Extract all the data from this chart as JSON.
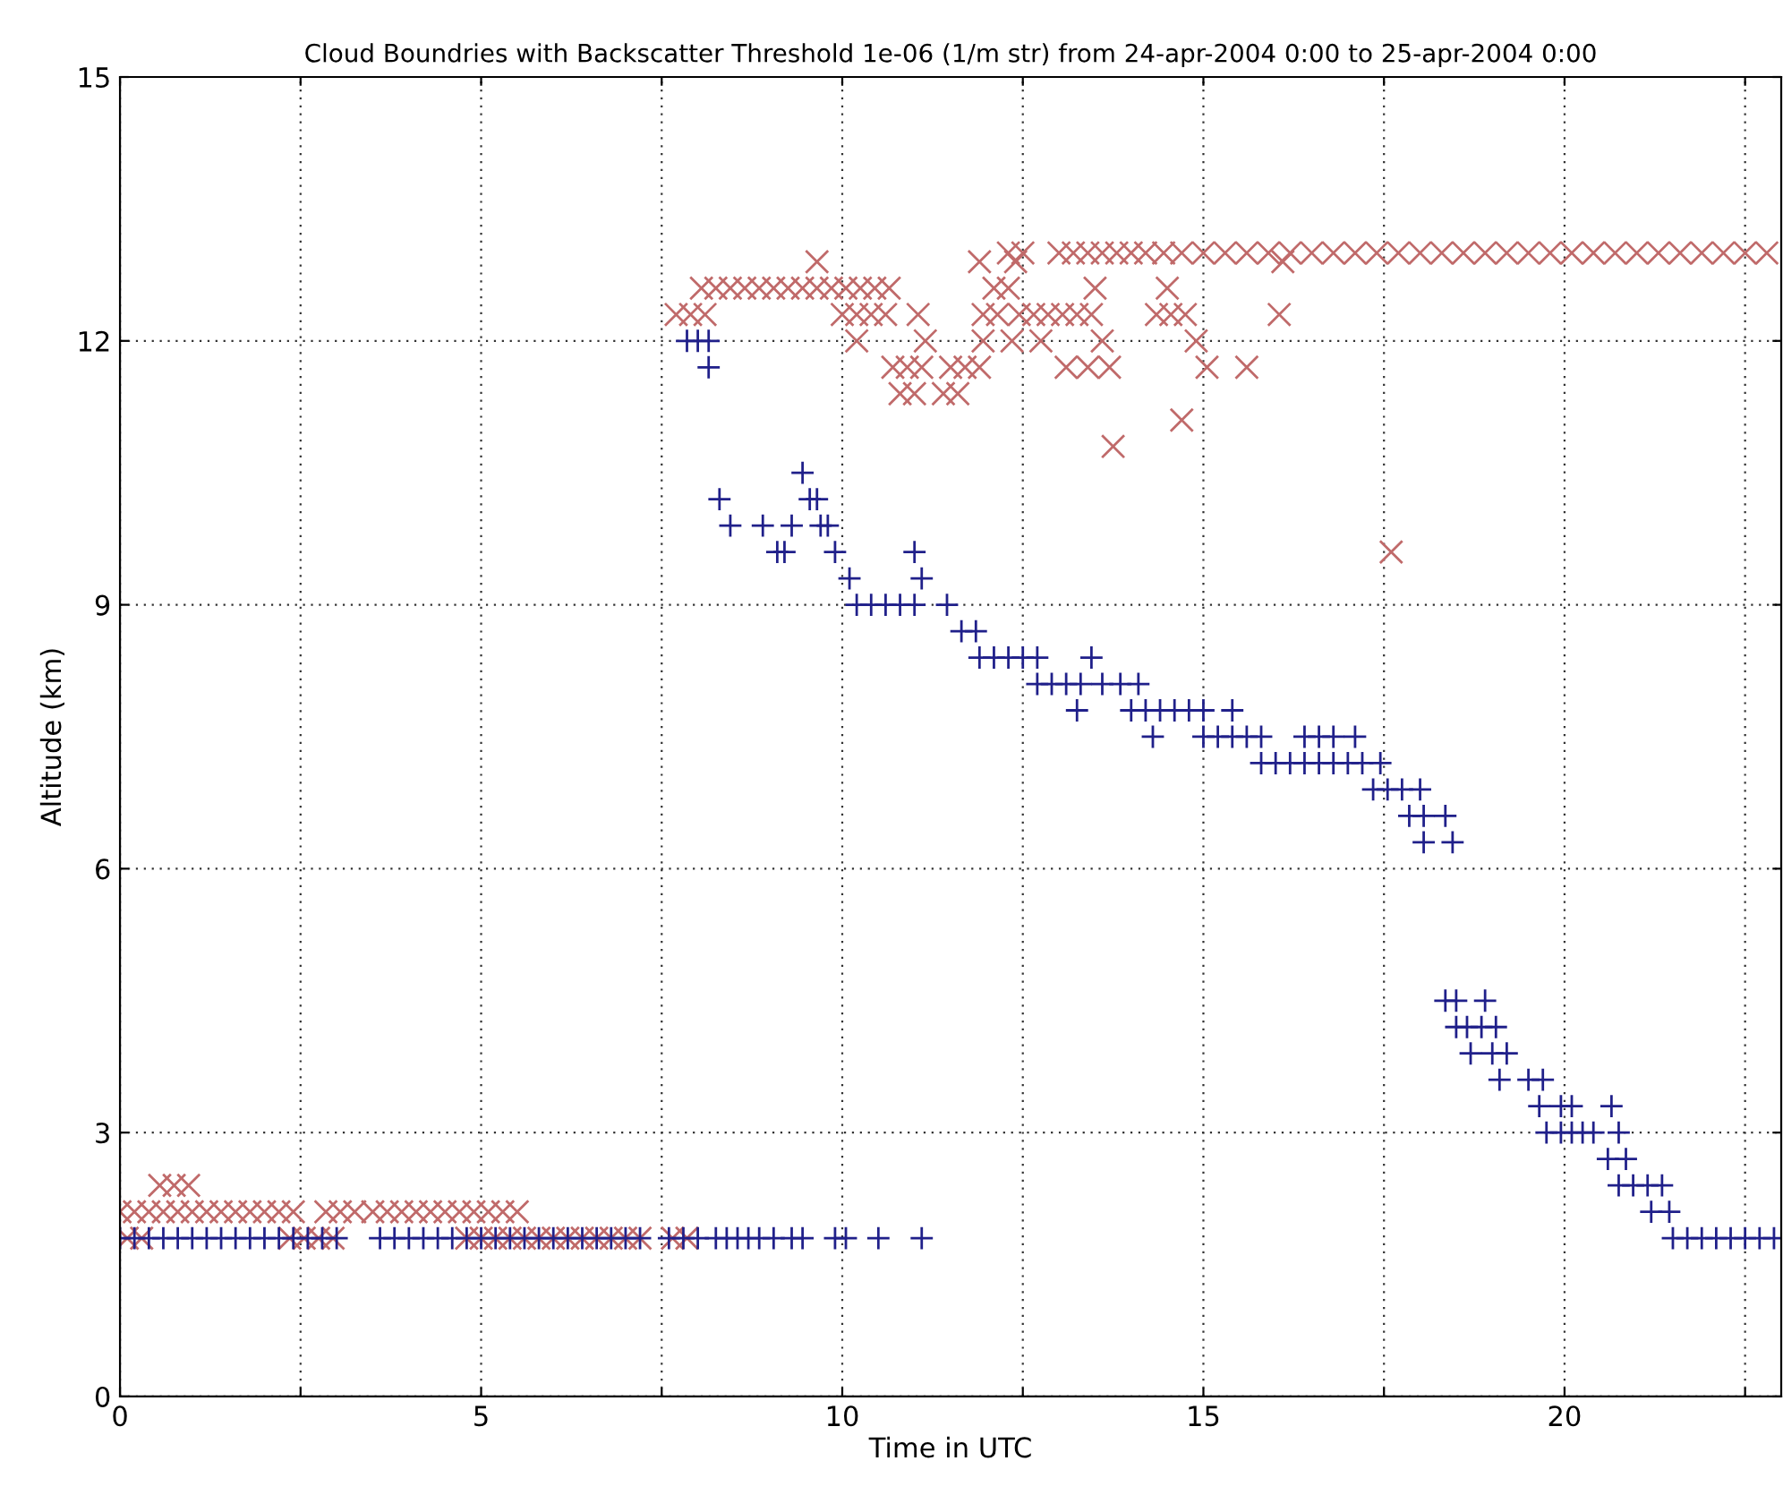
{
  "chart_data": {
    "type": "scatter",
    "title": "Cloud Boundries with Backscatter Threshold 1e-06 (1/m str) from 24-apr-2004 0:00 to 25-apr-2004 0:00",
    "xlabel": "Time in UTC",
    "ylabel": "Altitude (km)",
    "xlim": [
      0,
      23
    ],
    "ylim": [
      0,
      15
    ],
    "xticks": [
      0,
      {
        "value": 2.5,
        "label": null
      },
      5,
      {
        "value": 7.5,
        "label": null
      },
      10,
      {
        "value": 12.5,
        "label": null
      },
      15,
      {
        "value": 17.5,
        "label": null
      },
      20,
      {
        "value": 22.5,
        "label": null
      }
    ],
    "yticks": [
      0,
      3,
      6,
      9,
      12,
      15
    ],
    "grid": true,
    "series": [
      {
        "color": "#c06a6a",
        "marker": "cross",
        "x": [
          0,
          0.2,
          0.4,
          0.6,
          0.8,
          1.0,
          1.2,
          1.4,
          1.6,
          1.8,
          2.0,
          2.2,
          2.4,
          2.85,
          3.05,
          3.25,
          3.5,
          3.7,
          3.9,
          4.1,
          4.3,
          4.5,
          4.7,
          4.9,
          5.1,
          5.3,
          5.5,
          0.55,
          0.75,
          0.95,
          0.1,
          0.3,
          2.35,
          2.55,
          2.75,
          2.95,
          4.8,
          5.0,
          5.2,
          5.4,
          5.6,
          5.8,
          6.0,
          6.2,
          6.4,
          6.6,
          6.8,
          7.0,
          7.2,
          7.65,
          7.85,
          7.7,
          7.9,
          8.1,
          10.0,
          10.2,
          10.4,
          10.6,
          11.05,
          11.95,
          12.15,
          12.45,
          12.65,
          12.85,
          13.05,
          13.25,
          13.45,
          14.35,
          14.55,
          14.75,
          16.05,
          8.05,
          8.25,
          8.45,
          8.65,
          8.85,
          9.05,
          9.25,
          9.45,
          9.65,
          9.85,
          10.05,
          10.25,
          10.45,
          10.65,
          12.1,
          12.3,
          13.5,
          14.5,
          9.65,
          11.9,
          12.4,
          16.1,
          12.3,
          12.5,
          13.0,
          13.2,
          13.4,
          13.6,
          13.8,
          14.0,
          14.2,
          14.45,
          14.7,
          15.0,
          15.3,
          15.6,
          15.9,
          16.2,
          16.5,
          16.8,
          17.1,
          17.4,
          17.7,
          18.0,
          18.3,
          18.6,
          18.9,
          19.2,
          19.5,
          19.8,
          20.1,
          20.4,
          20.7,
          21.0,
          21.3,
          21.6,
          21.9,
          22.2,
          22.5,
          22.8,
          10.2,
          11.15,
          11.95,
          12.35,
          12.75,
          13.6,
          14.9,
          10.7,
          10.9,
          11.1,
          11.5,
          11.7,
          11.9,
          13.1,
          13.4,
          13.7,
          15.05,
          15.6,
          10.8,
          11.0,
          11.4,
          11.6,
          14.7,
          13.75,
          17.6
        ],
        "values": [
          2.1,
          2.1,
          2.1,
          2.1,
          2.1,
          2.1,
          2.1,
          2.1,
          2.1,
          2.1,
          2.1,
          2.1,
          2.1,
          2.1,
          2.1,
          2.1,
          2.1,
          2.1,
          2.1,
          2.1,
          2.1,
          2.1,
          2.1,
          2.1,
          2.1,
          2.1,
          2.1,
          2.4,
          2.4,
          2.4,
          1.8,
          1.8,
          1.8,
          1.8,
          1.8,
          1.8,
          1.8,
          1.8,
          1.8,
          1.8,
          1.8,
          1.8,
          1.8,
          1.8,
          1.8,
          1.8,
          1.8,
          1.8,
          1.8,
          1.8,
          1.8,
          12.3,
          12.3,
          12.3,
          12.3,
          12.3,
          12.3,
          12.3,
          12.3,
          12.3,
          12.3,
          12.3,
          12.3,
          12.3,
          12.3,
          12.3,
          12.3,
          12.3,
          12.3,
          12.3,
          12.3,
          12.6,
          12.6,
          12.6,
          12.6,
          12.6,
          12.6,
          12.6,
          12.6,
          12.6,
          12.6,
          12.6,
          12.6,
          12.6,
          12.6,
          12.6,
          12.6,
          12.6,
          12.6,
          12.9,
          12.9,
          12.9,
          12.9,
          13.0,
          13.0,
          13.0,
          13.0,
          13.0,
          13.0,
          13.0,
          13.0,
          13.0,
          13.0,
          13.0,
          13.0,
          13.0,
          13.0,
          13.0,
          13.0,
          13.0,
          13.0,
          13.0,
          13.0,
          13.0,
          13.0,
          13.0,
          13.0,
          13.0,
          13.0,
          13.0,
          13.0,
          13.0,
          13.0,
          13.0,
          13.0,
          13.0,
          13.0,
          13.0,
          13.0,
          13.0,
          13.0,
          12.0,
          12.0,
          12.0,
          12.0,
          12.0,
          12.0,
          12.0,
          11.7,
          11.7,
          11.7,
          11.7,
          11.7,
          11.7,
          11.7,
          11.7,
          11.7,
          11.7,
          11.7,
          11.4,
          11.4,
          11.4,
          11.4,
          11.1,
          10.8,
          9.6
        ]
      },
      {
        "color": "#20208a",
        "marker": "plus",
        "x": [
          0,
          0.2,
          0.4,
          0.6,
          0.8,
          1.0,
          1.2,
          1.4,
          1.6,
          1.8,
          2.0,
          2.2,
          2.4,
          2.6,
          2.8,
          3.0,
          3.6,
          3.8,
          4.0,
          4.2,
          4.4,
          4.6,
          4.8,
          5.0,
          5.2,
          5.4,
          5.6,
          5.8,
          6.0,
          6.2,
          6.4,
          6.6,
          6.8,
          7.0,
          7.2,
          7.6,
          7.8,
          8.0,
          8.25,
          8.4,
          8.55,
          8.7,
          8.85,
          9.05,
          9.3,
          9.45,
          9.9,
          10.05,
          10.5,
          11.1,
          7.85,
          8.0,
          8.15,
          8.15,
          8.3,
          8.45,
          8.9,
          9.1,
          9.2,
          9.3,
          9.45,
          9.55,
          9.65,
          9.7,
          9.8,
          9.9,
          10.1,
          10.2,
          10.4,
          10.6,
          10.8,
          11.0,
          11.0,
          11.1,
          11.45,
          11.65,
          11.85,
          11.9,
          12.1,
          12.3,
          12.5,
          12.7,
          13.45,
          12.7,
          12.9,
          13.1,
          13.3,
          13.6,
          13.85,
          14.1,
          13.25,
          14.0,
          14.2,
          14.4,
          14.6,
          14.8,
          15.0,
          15.4,
          14.3,
          15.0,
          15.2,
          15.4,
          15.6,
          15.8,
          16.4,
          16.6,
          16.8,
          17.1,
          15.8,
          16.0,
          16.2,
          16.4,
          16.6,
          16.8,
          17.0,
          17.2,
          17.45,
          17.35,
          17.55,
          17.75,
          18.0,
          17.85,
          18.05,
          18.35,
          18.05,
          18.45,
          18.35,
          18.5,
          18.9,
          18.5,
          18.65,
          18.85,
          19.05,
          18.7,
          19.0,
          19.2,
          19.1,
          19.5,
          19.7,
          19.65,
          19.95,
          20.1,
          20.65,
          19.75,
          19.95,
          20.1,
          20.25,
          20.4,
          20.75,
          20.6,
          20.85,
          20.75,
          20.95,
          21.15,
          21.35,
          21.2,
          21.45,
          21.5,
          21.7,
          21.9,
          22.1,
          22.3,
          22.5,
          22.7,
          22.9
        ],
        "values": [
          1.8,
          1.8,
          1.8,
          1.8,
          1.8,
          1.8,
          1.8,
          1.8,
          1.8,
          1.8,
          1.8,
          1.8,
          1.8,
          1.8,
          1.8,
          1.8,
          1.8,
          1.8,
          1.8,
          1.8,
          1.8,
          1.8,
          1.8,
          1.8,
          1.8,
          1.8,
          1.8,
          1.8,
          1.8,
          1.8,
          1.8,
          1.8,
          1.8,
          1.8,
          1.8,
          1.8,
          1.8,
          1.8,
          1.8,
          1.8,
          1.8,
          1.8,
          1.8,
          1.8,
          1.8,
          1.8,
          1.8,
          1.8,
          1.8,
          1.8,
          12.0,
          12.0,
          12.0,
          11.7,
          10.2,
          9.9,
          9.9,
          9.6,
          9.6,
          9.9,
          10.5,
          10.2,
          10.2,
          9.9,
          9.9,
          9.6,
          9.3,
          9.0,
          9.0,
          9.0,
          9.0,
          9.0,
          9.6,
          9.3,
          9.0,
          8.7,
          8.7,
          8.4,
          8.4,
          8.4,
          8.4,
          8.4,
          8.4,
          8.1,
          8.1,
          8.1,
          8.1,
          8.1,
          8.1,
          8.1,
          7.8,
          7.8,
          7.8,
          7.8,
          7.8,
          7.8,
          7.8,
          7.8,
          7.5,
          7.5,
          7.5,
          7.5,
          7.5,
          7.5,
          7.5,
          7.5,
          7.5,
          7.5,
          7.2,
          7.2,
          7.2,
          7.2,
          7.2,
          7.2,
          7.2,
          7.2,
          7.2,
          6.9,
          6.9,
          6.9,
          6.9,
          6.6,
          6.6,
          6.6,
          6.3,
          6.3,
          4.5,
          4.5,
          4.5,
          4.2,
          4.2,
          4.2,
          4.2,
          3.9,
          3.9,
          3.9,
          3.6,
          3.6,
          3.6,
          3.3,
          3.3,
          3.3,
          3.3,
          3.0,
          3.0,
          3.0,
          3.0,
          3.0,
          3.0,
          2.7,
          2.7,
          2.4,
          2.4,
          2.4,
          2.4,
          2.1,
          2.1,
          1.8,
          1.8,
          1.8,
          1.8,
          1.8,
          1.8,
          1.8,
          1.8
        ]
      }
    ]
  }
}
